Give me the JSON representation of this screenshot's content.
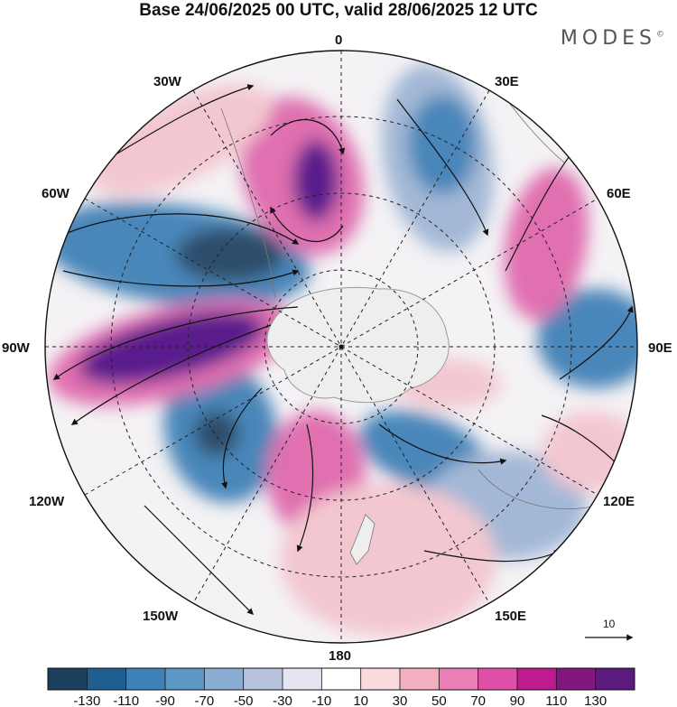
{
  "title": "Base 24/06/2025 00 UTC, valid 28/06/2025 12 UTC",
  "brand": "MODES",
  "brand_mark": "©",
  "map": {
    "projection": "south polar stereographic",
    "lon_labels": [
      "0",
      "30E",
      "60E",
      "90E",
      "120E",
      "150E",
      "180",
      "150W",
      "120W",
      "90W",
      "60W",
      "30W"
    ],
    "reference_vector": "10",
    "fill_colors": {
      "neg_strong": "#2e4d6b",
      "neg": "#4a86b9",
      "neg_weak": "#a3b8d6",
      "near_zero": "#f4f2f5",
      "pos_weak": "#f3c7d0",
      "pos": "#e070b0",
      "pos_strong": "#5a1f8c",
      "land": "#eeeeee"
    }
  },
  "colorbar": {
    "labels": [
      "-130",
      "-110",
      "-90",
      "-70",
      "-50",
      "-30",
      "-10",
      "10",
      "30",
      "50",
      "70",
      "90",
      "110",
      "130"
    ],
    "colors": [
      "#1c3f5e",
      "#1f5f8f",
      "#3f82b8",
      "#5c98c6",
      "#8aaed3",
      "#b7c3dd",
      "#e6e4f0",
      "#ffffff",
      "#fadadd",
      "#f2b0c1",
      "#eb80b7",
      "#df50a8",
      "#be1c8e",
      "#84167f",
      "#5a1a7e"
    ]
  }
}
